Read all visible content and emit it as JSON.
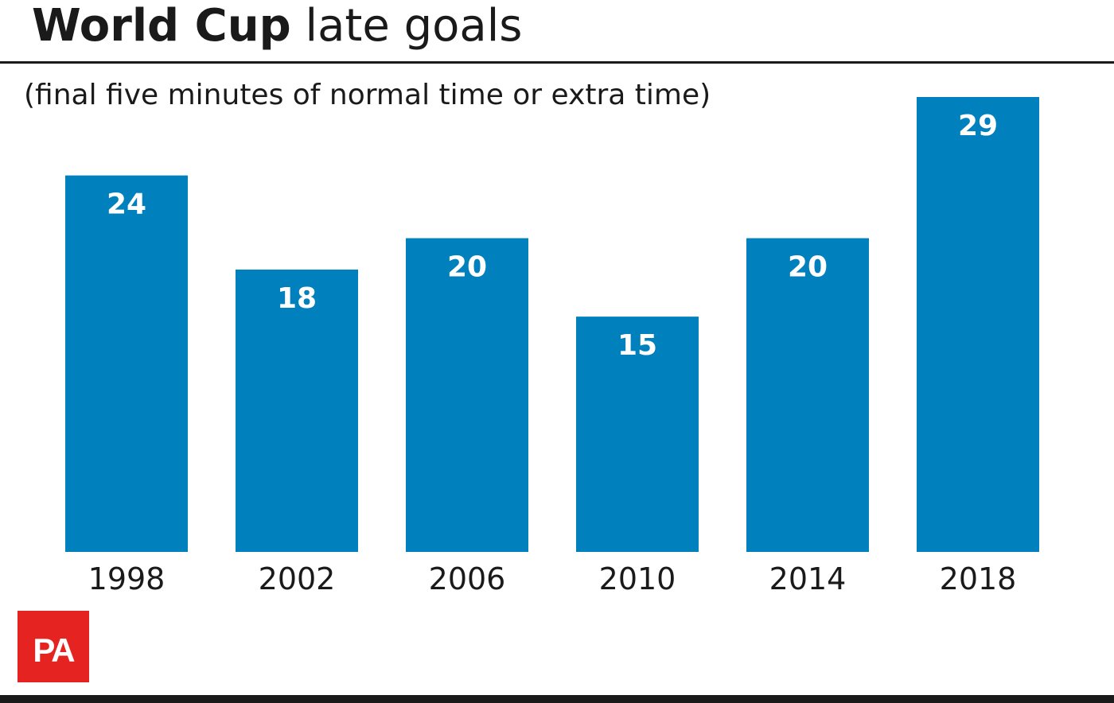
{
  "header": {
    "title_bold": "World Cup",
    "title_light": "late goals",
    "subtitle": "(final five minutes of normal time or extra time)"
  },
  "logo": {
    "text": "PA",
    "color": "#e52421"
  },
  "colors": {
    "bar": "#0080bd",
    "bar_label": "#ffffff",
    "text": "#1a1a1a"
  },
  "chart_data": {
    "type": "bar",
    "title": "World Cup late goals",
    "subtitle": "(final five minutes of normal time or extra time)",
    "categories": [
      "1998",
      "2002",
      "2006",
      "2010",
      "2014",
      "2018"
    ],
    "values": [
      24,
      18,
      20,
      15,
      20,
      29
    ],
    "xlabel": "",
    "ylabel": "",
    "ylim": [
      0,
      29
    ],
    "grid": false,
    "legend": "none"
  }
}
